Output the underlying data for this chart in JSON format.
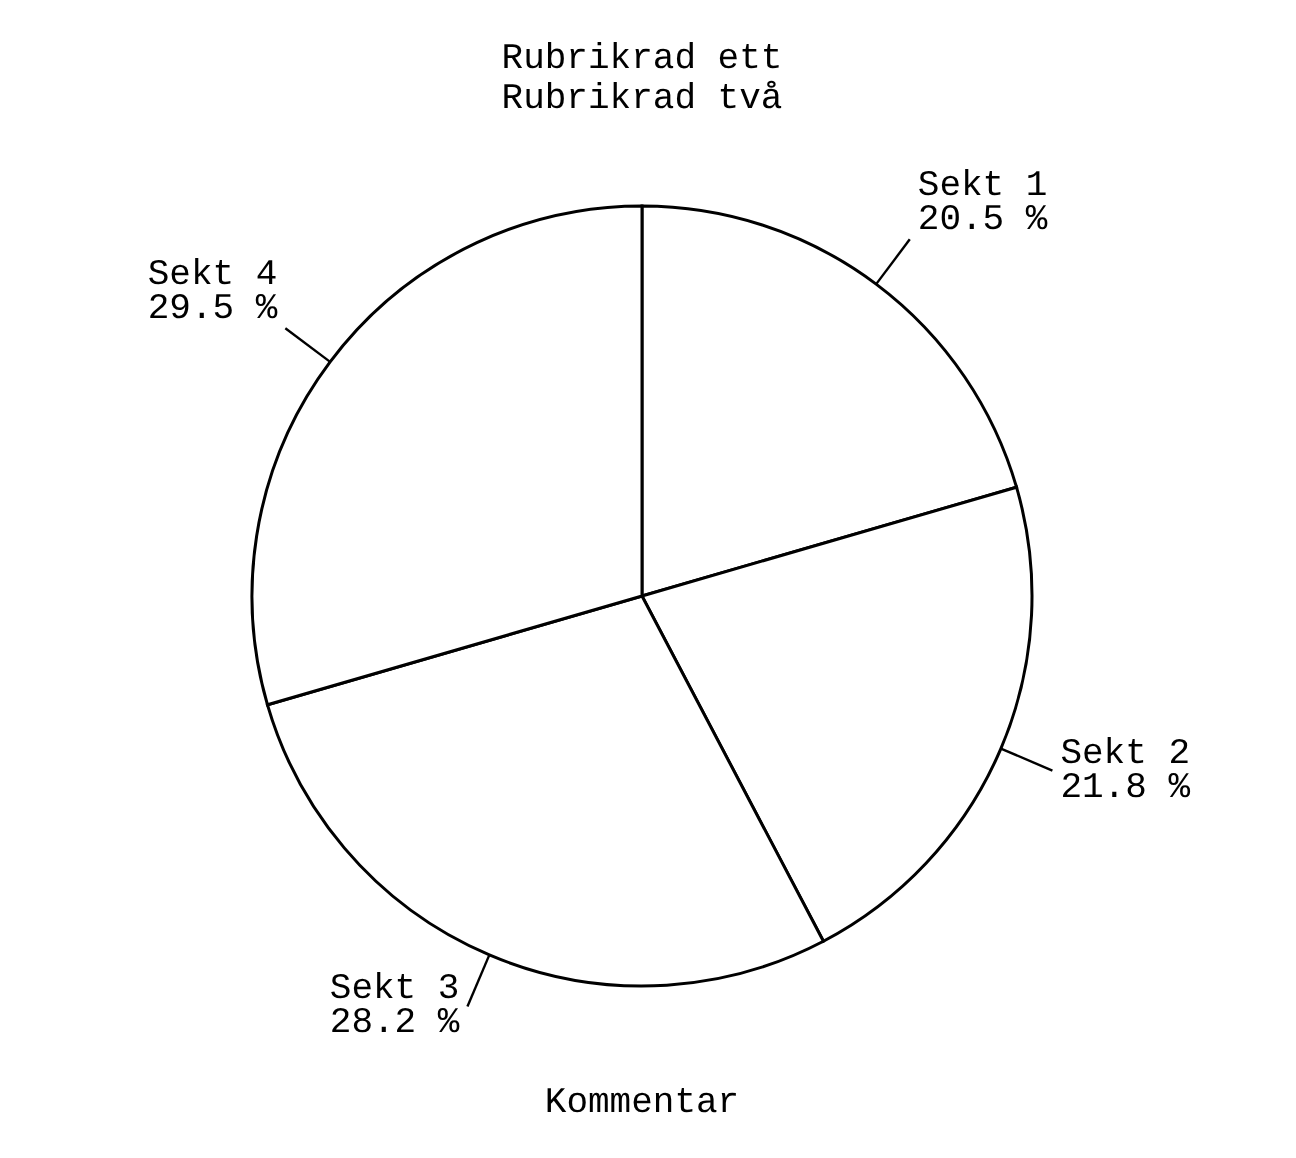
{
  "chart_data": {
    "type": "pie",
    "title": "Rubrikrad ett\nRubrikrad två",
    "annotations": [
      "Kommentar"
    ],
    "categories": [
      "Sekt 1",
      "Sekt 2",
      "Sekt 3",
      "Sekt 4"
    ],
    "values": [
      20.5,
      21.8,
      28.2,
      29.5
    ],
    "value_labels": [
      "20.5 %",
      "21.8 %",
      "28.2 %",
      "29.5 %"
    ],
    "colors": [
      "#ffffff",
      "#ffffff",
      "#ffffff",
      "#ffffff"
    ]
  }
}
